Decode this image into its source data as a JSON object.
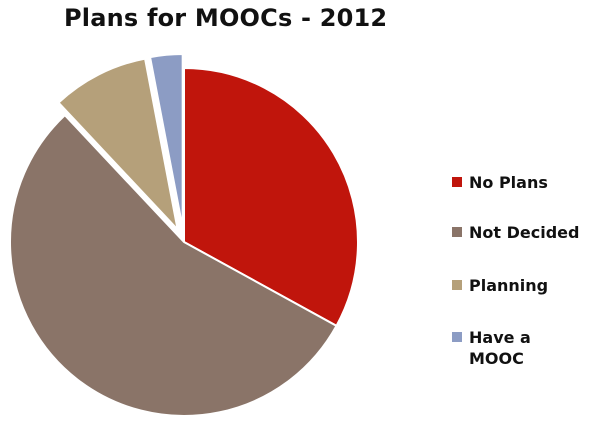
{
  "chart_data": {
    "type": "pie",
    "title": "Plans for MOOCs - 2012",
    "categories": [
      "No Plans",
      "Not Decided",
      "Planning",
      "Have a MOOC"
    ],
    "legend_labels": [
      "No Plans",
      "Not Decided",
      "Planning",
      "Have a\nMOOC"
    ],
    "values": [
      33,
      55,
      9,
      3
    ],
    "colors": [
      "#c0150c",
      "#8a7468",
      "#b5a07a",
      "#8c9cc4"
    ],
    "exploded": [
      false,
      false,
      true,
      true
    ],
    "legend_position": "right"
  }
}
